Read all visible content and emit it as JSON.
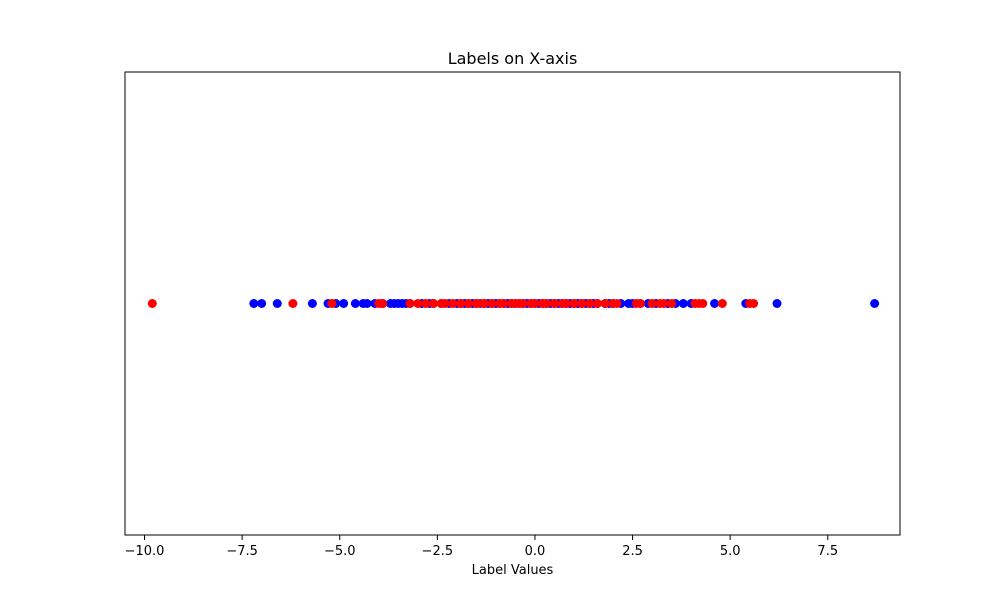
{
  "chart_data": {
    "type": "scatter",
    "title": "Labels on X-axis",
    "xlabel": "Label Values",
    "ylabel": "",
    "xlim": [
      -10.5,
      9.35
    ],
    "ylim": [
      -1,
      1
    ],
    "grid": false,
    "yticks_visible": false,
    "xticks": [
      {
        "value": -10.0,
        "label": "−10.0"
      },
      {
        "value": -7.5,
        "label": "−7.5"
      },
      {
        "value": -5.0,
        "label": "−5.0"
      },
      {
        "value": -2.5,
        "label": "−2.5"
      },
      {
        "value": 0.0,
        "label": "0.0"
      },
      {
        "value": 2.5,
        "label": "2.5"
      },
      {
        "value": 5.0,
        "label": "5.0"
      },
      {
        "value": 7.5,
        "label": "7.5"
      }
    ],
    "series": [
      {
        "color": "#0000ff",
        "y": 0,
        "x": [
          -7.2,
          -7.0,
          -6.6,
          -5.7,
          -5.3,
          -5.1,
          -4.9,
          -4.6,
          -4.4,
          -4.3,
          -4.1,
          -3.9,
          -3.7,
          -3.6,
          -3.5,
          -3.4,
          -3.3,
          -3.2,
          -2.9,
          -2.7,
          -2.6,
          -2.4,
          -2.2,
          -2.0,
          -1.9,
          -1.8,
          -1.7,
          -1.6,
          -1.5,
          -1.4,
          -1.3,
          -1.2,
          -1.1,
          -1.0,
          -0.9,
          -0.8,
          -0.7,
          -0.6,
          -0.5,
          -0.4,
          -0.3,
          -0.2,
          -0.1,
          0.0,
          0.1,
          0.2,
          0.3,
          0.4,
          0.5,
          0.6,
          0.7,
          0.8,
          0.9,
          1.0,
          1.1,
          1.2,
          1.3,
          1.4,
          1.5,
          1.6,
          1.8,
          1.9,
          2.0,
          2.2,
          2.4,
          2.5,
          2.7,
          2.9,
          3.1,
          3.4,
          3.6,
          3.8,
          4.0,
          4.6,
          5.4,
          6.2,
          8.7
        ]
      },
      {
        "color": "#ff0000",
        "y": 0,
        "x": [
          -9.8,
          -6.2,
          -5.2,
          -4.0,
          -3.9,
          -3.2,
          -3.0,
          -2.8,
          -2.6,
          -2.4,
          -2.3,
          -2.1,
          -1.9,
          -1.7,
          -1.5,
          -1.4,
          -1.3,
          -1.1,
          -0.9,
          -0.8,
          -0.6,
          -0.5,
          -0.4,
          -0.3,
          -0.1,
          0.0,
          0.2,
          0.3,
          0.5,
          0.7,
          0.8,
          1.0,
          1.2,
          1.4,
          1.6,
          1.8,
          2.0,
          2.1,
          2.6,
          2.7,
          3.0,
          3.2,
          3.3,
          3.5,
          4.1,
          4.2,
          4.3,
          4.8,
          5.5,
          5.6
        ]
      }
    ]
  }
}
